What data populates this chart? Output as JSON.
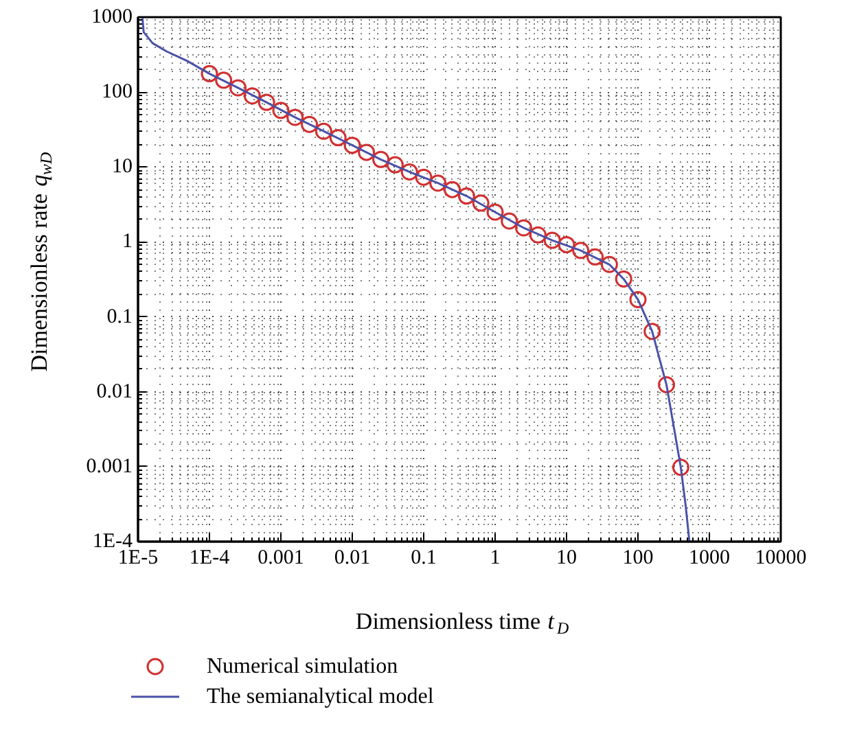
{
  "chart_data": {
    "type": "scatter",
    "xlabel": "Dimensionless time t$_{D}$",
    "ylabel": "Dimensionless rate q$_{wD}$",
    "log": "xy",
    "grid": true,
    "legend": "bottom",
    "xlim": [
      1e-05,
      10000
    ],
    "ylim": [
      0.0001,
      1000
    ],
    "xticks": [
      {
        "value": 1e-05,
        "label": "1E-5"
      },
      {
        "value": 0.0001,
        "label": "1E-4"
      },
      0.001,
      0.01,
      0.1,
      1,
      10,
      100,
      1000,
      10000
    ],
    "yticks": [
      {
        "value": 0.0001,
        "label": "1E-4"
      },
      0.001,
      0.01,
      0.1,
      1,
      10,
      100,
      1000
    ],
    "series": [
      {
        "name": "Numerical simulation",
        "marker": "circle",
        "color": "#d03030",
        "x": [
          0.0001,
          0.000158,
          0.000251,
          0.000398,
          0.000631,
          0.001,
          0.00158,
          0.00251,
          0.00398,
          0.00631,
          0.01,
          0.0158,
          0.0251,
          0.0398,
          0.0631,
          0.1,
          0.158,
          0.251,
          0.398,
          0.631,
          1,
          1.58,
          2.51,
          3.98,
          6.31,
          10,
          15.8,
          25.1,
          39.8,
          63.1,
          100,
          158,
          251,
          398
        ],
        "values": [
          176,
          144,
          114,
          89,
          73,
          57,
          46,
          37,
          30,
          24.6,
          19.5,
          15.7,
          12.6,
          10.7,
          8.6,
          7.3,
          6.1,
          5.0,
          4.1,
          3.3,
          2.5,
          1.9,
          1.54,
          1.24,
          1.05,
          0.92,
          0.77,
          0.63,
          0.5,
          0.32,
          0.17,
          0.064,
          0.0124,
          0.00098
        ]
      },
      {
        "name": "The semianalytical model",
        "type": "line",
        "marker": "none",
        "line_style": "solid",
        "color": "#4a52a8",
        "x": [
          1.15e-05,
          1.2e-05,
          1.6e-05,
          2.5e-05,
          4.9e-05,
          0.0001,
          0.000251,
          0.000631,
          0.00158,
          0.00398,
          0.01,
          0.0251,
          0.0631,
          0.158,
          0.398,
          1,
          2.51,
          6.31,
          15.8,
          39.8,
          63.1,
          100,
          158,
          251,
          398,
          468,
          525
        ],
        "values": [
          1000,
          630,
          450,
          350,
          260,
          176,
          114,
          73,
          46,
          30,
          19.5,
          12.6,
          8.6,
          6.1,
          4.1,
          2.5,
          1.54,
          1.05,
          0.77,
          0.5,
          0.32,
          0.17,
          0.064,
          0.0124,
          0.00098,
          0.00029,
          0.0001
        ]
      }
    ]
  }
}
